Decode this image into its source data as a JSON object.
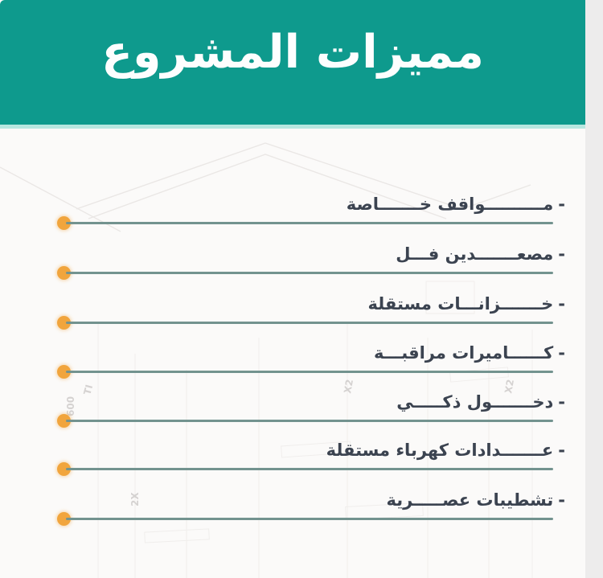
{
  "header": {
    "title": "مميزات المشروع"
  },
  "list": {
    "dash": "-"
  },
  "features": [
    {
      "label": "مــــــــــواقف خـــــــاصة"
    },
    {
      "label": "مصعـــــــدين فـــل"
    },
    {
      "label": "خـــــــزانـــات مستقلة"
    },
    {
      "label": "كــــــاميرات مراقبـــة"
    },
    {
      "label": "دخـــــــول ذكـــــي"
    },
    {
      "label": "عـــــــدادات كهرباء مستقلة"
    },
    {
      "label": "تشطيبات عصـــــرية"
    }
  ],
  "watermarks": [
    {
      "text": "600"
    },
    {
      "text": "TI"
    },
    {
      "text": "2X"
    },
    {
      "text": "X2"
    },
    {
      "text": "X2"
    }
  ],
  "colors": {
    "header_teal": "#0e9a8d",
    "header_edge": "#b7e7e0",
    "bullet_orange": "#f1a53d",
    "rule_teal_gray": "#73938f",
    "text_dark": "#3b4350",
    "side_strip": "#edecec",
    "background": "#fbfaf9"
  }
}
